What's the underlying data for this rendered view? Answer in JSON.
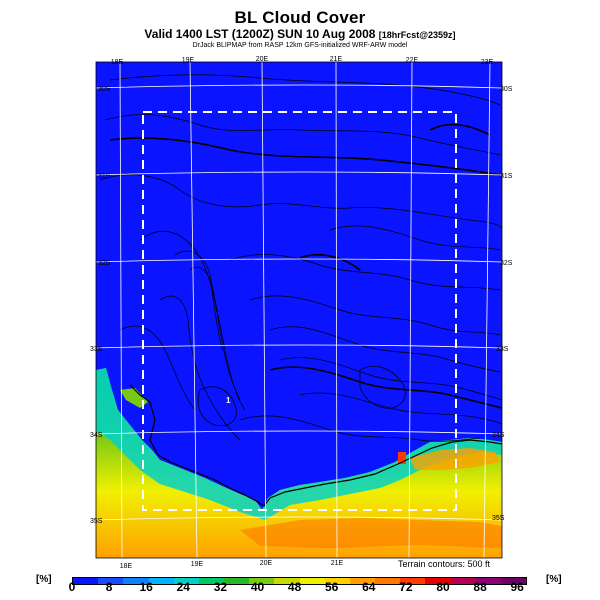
{
  "header": {
    "title": "BL Cloud Cover",
    "subtitle_main": "Valid 1400 LST (1200Z) SUN 10 Aug 2008 ",
    "subtitle_small": "[18hrFcst@2359z]",
    "credit": "DrJack BLIPMAP from RASP 12km GFS-initialized WRF-ARW model"
  },
  "map": {
    "top_lon_labels": [
      "18E",
      "19E",
      "20E",
      "21E",
      "22E",
      "23E"
    ],
    "bottom_lon_labels": [
      "18E",
      "19E",
      "20E",
      "21E"
    ],
    "right_lat_labels": [
      "30S",
      "31S",
      "32S",
      "33S",
      "34S",
      "35S"
    ],
    "left_lat_labels": [
      "30S",
      "31S",
      "32S",
      "33S",
      "34S",
      "35S"
    ],
    "marker_label": "1",
    "terrain_note": "Terrain contours: 500 ft",
    "ocean_color": "#0a14ff"
  },
  "colorbar": {
    "unit_left": "[%]",
    "unit_right": "[%]",
    "labels": [
      "0",
      "8",
      "16",
      "24",
      "32",
      "40",
      "48",
      "56",
      "64",
      "72",
      "80",
      "88",
      "96"
    ],
    "colors": [
      "#0a14ff",
      "#1a4cff",
      "#0a82ff",
      "#00b4ff",
      "#00d2c8",
      "#00c864",
      "#2ab42a",
      "#78c814",
      "#c8dc00",
      "#f0f000",
      "#ffd200",
      "#ffa000",
      "#ff7800",
      "#ff3c00",
      "#e60000",
      "#b40050",
      "#8c0078",
      "#6e0064"
    ]
  }
}
